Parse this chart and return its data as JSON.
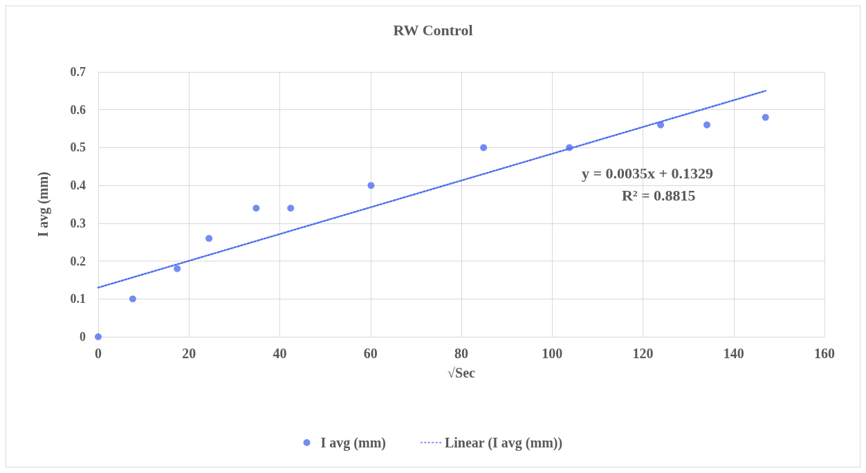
{
  "chart_data": {
    "type": "scatter",
    "title": "RW Control",
    "xlabel": "√Sec",
    "ylabel": "I avg (mm)",
    "xlim": [
      0,
      160
    ],
    "xticks": [
      0,
      20,
      40,
      60,
      80,
      100,
      120,
      140,
      160
    ],
    "ylim": [
      0,
      0.7
    ],
    "yticks": [
      0,
      0.1,
      0.2,
      0.3,
      0.4,
      0.5,
      0.6,
      0.7
    ],
    "grid": true,
    "legend": "bottom",
    "marker": "circle",
    "annotations": [
      "y = 0.0035x + 0.1329",
      "R² = 0.8815"
    ],
    "series": [
      {
        "name": "I avg (mm)",
        "color": "#4f6ff0",
        "x": [
          0,
          7.6,
          17.4,
          24.4,
          34.8,
          42.4,
          60.1,
          84.9,
          103.8,
          123.9,
          134.1,
          147
        ],
        "values": [
          0,
          0.1,
          0.18,
          0.26,
          0.34,
          0.34,
          0.4,
          0.5,
          0.5,
          0.56,
          0.56,
          0.58
        ]
      },
      {
        "name": "Linear (I avg (mm))",
        "type": "line",
        "color": "#4f6ff0",
        "line_style": "dotted",
        "marker": "none",
        "x": [
          0,
          147
        ],
        "values": [
          0.13,
          0.65
        ]
      }
    ]
  }
}
